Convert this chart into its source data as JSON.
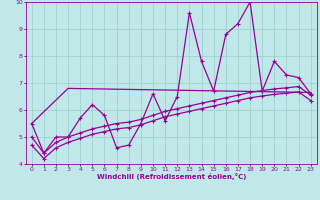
{
  "xlabel": "Windchill (Refroidissement éolien,°C)",
  "bg_color": "#c0e8e8",
  "line_color": "#990099",
  "grid_color": "#98cccc",
  "xlim": [
    -0.5,
    23.5
  ],
  "ylim": [
    4,
    10
  ],
  "yticks": [
    4,
    5,
    6,
    7,
    8,
    9,
    10
  ],
  "xticks": [
    0,
    1,
    2,
    3,
    4,
    5,
    6,
    7,
    8,
    9,
    10,
    11,
    12,
    13,
    14,
    15,
    16,
    17,
    18,
    19,
    20,
    21,
    22,
    23
  ],
  "line1_x": [
    0,
    1,
    2,
    3,
    4,
    5,
    6,
    7,
    8,
    9,
    10,
    11,
    12,
    13,
    14,
    15,
    16,
    17,
    18,
    19,
    20,
    21,
    22,
    23
  ],
  "line1_y": [
    5.5,
    4.4,
    5.0,
    5.0,
    5.7,
    6.2,
    5.8,
    4.6,
    4.7,
    5.5,
    6.6,
    5.6,
    6.5,
    9.6,
    7.8,
    6.7,
    8.8,
    9.2,
    10.0,
    6.7,
    7.8,
    7.3,
    7.2,
    6.6
  ],
  "line2_x": [
    0,
    1,
    2,
    3,
    4,
    5,
    6,
    7,
    8,
    9,
    10,
    11,
    12,
    13,
    14,
    15,
    16,
    17,
    18,
    19,
    20,
    21,
    22,
    23
  ],
  "line2_y": [
    5.0,
    4.4,
    4.8,
    5.0,
    5.15,
    5.3,
    5.4,
    5.5,
    5.55,
    5.65,
    5.8,
    5.95,
    6.05,
    6.15,
    6.25,
    6.35,
    6.45,
    6.55,
    6.65,
    6.72,
    6.78,
    6.82,
    6.87,
    6.55
  ],
  "line3_x": [
    0,
    1,
    2,
    3,
    4,
    5,
    6,
    7,
    8,
    9,
    10,
    11,
    12,
    13,
    14,
    15,
    16,
    17,
    18,
    19,
    20,
    21,
    22,
    23
  ],
  "line3_y": [
    4.7,
    4.2,
    4.6,
    4.8,
    4.95,
    5.1,
    5.2,
    5.3,
    5.35,
    5.45,
    5.6,
    5.75,
    5.85,
    5.95,
    6.05,
    6.15,
    6.25,
    6.35,
    6.45,
    6.52,
    6.58,
    6.62,
    6.67,
    6.35
  ],
  "line4_x": [
    0,
    3,
    23
  ],
  "line4_y": [
    5.5,
    6.8,
    6.65
  ]
}
